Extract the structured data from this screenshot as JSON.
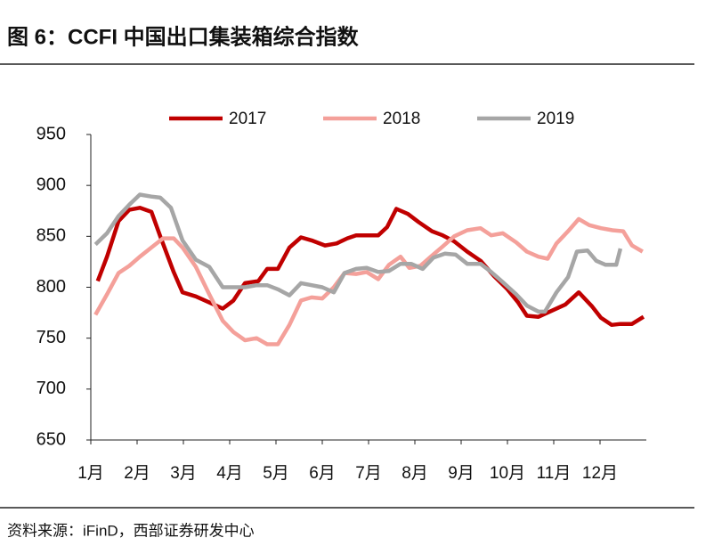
{
  "chart_data": {
    "type": "line",
    "title": "图 6：CCFI 中国出口集装箱综合指数",
    "source": "资料来源：iFinD，西部证券研发中心",
    "xlim": [
      1,
      13
    ],
    "xticks": [
      {
        "value": 1,
        "label": "1月"
      },
      {
        "value": 2,
        "label": "2月"
      },
      {
        "value": 3,
        "label": "3月"
      },
      {
        "value": 4,
        "label": "4月"
      },
      {
        "value": 5,
        "label": "5月"
      },
      {
        "value": 6,
        "label": "6月"
      },
      {
        "value": 7,
        "label": "7月"
      },
      {
        "value": 8,
        "label": "8月"
      },
      {
        "value": 9,
        "label": "9月"
      },
      {
        "value": 10,
        "label": "10月"
      },
      {
        "value": 11,
        "label": "11月"
      },
      {
        "value": 12,
        "label": "12月"
      }
    ],
    "ylim": [
      650,
      950
    ],
    "yticks": [
      650,
      700,
      750,
      800,
      850,
      900,
      950
    ],
    "legend": "top",
    "series": [
      {
        "name": "2017",
        "color": "#c00000",
        "x": [
          1.15,
          1.35,
          1.6,
          1.83,
          2.06,
          2.31,
          2.5,
          2.79,
          2.98,
          3.27,
          3.56,
          3.85,
          4.08,
          4.33,
          4.62,
          4.81,
          5.04,
          5.29,
          5.54,
          5.77,
          6.06,
          6.31,
          6.54,
          6.73,
          7.21,
          7.4,
          7.6,
          7.85,
          8.08,
          8.37,
          8.6,
          8.85,
          9.13,
          9.42,
          9.71,
          10,
          10.23,
          10.42,
          10.67,
          10.96,
          11.25,
          11.54,
          11.83,
          12.02,
          12.25,
          12.44,
          12.69,
          12.94
        ],
        "values": [
          806,
          830,
          865,
          876,
          878,
          874,
          850,
          815,
          795,
          791,
          785,
          779,
          787,
          804,
          806,
          818,
          818,
          839,
          849,
          846,
          841,
          843,
          848,
          851,
          851,
          859,
          877,
          872,
          864,
          855,
          851,
          845,
          835,
          826,
          811,
          798,
          785,
          772,
          771,
          777,
          783,
          795,
          781,
          770,
          763,
          764,
          764,
          771
        ]
      },
      {
        "name": "2018",
        "color": "#f4a09a",
        "x": [
          1.1,
          1.35,
          1.6,
          1.83,
          2.06,
          2.31,
          2.56,
          2.79,
          2.98,
          3.27,
          3.56,
          3.85,
          4.08,
          4.33,
          4.58,
          4.81,
          5.04,
          5.29,
          5.54,
          5.77,
          6,
          6.25,
          6.48,
          6.73,
          6.96,
          7.21,
          7.44,
          7.69,
          7.88,
          8.12,
          8.37,
          8.6,
          8.85,
          9.13,
          9.42,
          9.65,
          9.9,
          10.19,
          10.42,
          10.67,
          10.87,
          11.06,
          11.31,
          11.54,
          11.77,
          12.02,
          12.27,
          12.5,
          12.69,
          12.92
        ],
        "values": [
          773,
          793,
          814,
          821,
          830,
          839,
          848,
          848,
          839,
          820,
          793,
          767,
          756,
          748,
          750,
          744,
          744,
          763,
          787,
          790,
          789,
          800,
          814,
          813,
          815,
          808,
          822,
          830,
          819,
          821,
          831,
          840,
          850,
          856,
          858,
          851,
          853,
          844,
          835,
          830,
          828,
          843,
          855,
          867,
          861,
          858,
          856,
          855,
          841,
          835
        ]
      },
      {
        "name": "2019",
        "color": "#a6a6a6",
        "x": [
          1.1,
          1.35,
          1.6,
          1.83,
          2.06,
          2.31,
          2.5,
          2.73,
          2.98,
          3.27,
          3.56,
          3.85,
          4.08,
          4.33,
          4.58,
          4.81,
          5.04,
          5.29,
          5.54,
          5.77,
          6,
          6.25,
          6.48,
          6.73,
          6.96,
          7.21,
          7.44,
          7.69,
          7.92,
          8.17,
          8.4,
          8.65,
          8.88,
          9.13,
          9.42,
          9.65,
          9.9,
          10.19,
          10.42,
          10.67,
          10.81,
          11.06,
          11.31,
          11.5,
          11.73,
          11.92,
          12.12,
          12.35,
          12.44
        ],
        "values": [
          842,
          853,
          870,
          881,
          891,
          889,
          888,
          878,
          846,
          827,
          820,
          800,
          800,
          800,
          802,
          802,
          798,
          792,
          804,
          802,
          800,
          795,
          814,
          818,
          819,
          815,
          816,
          823,
          823,
          818,
          829,
          833,
          832,
          823,
          823,
          815,
          805,
          793,
          782,
          776,
          776,
          795,
          810,
          835,
          836,
          826,
          822,
          822,
          838
        ]
      }
    ]
  }
}
